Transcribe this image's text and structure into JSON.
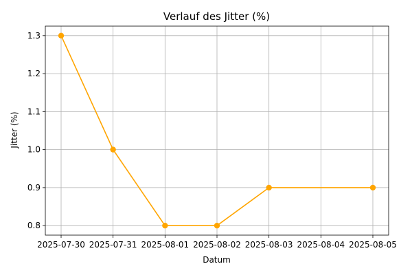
{
  "chart_data": {
    "type": "line",
    "title": "Verlauf des Jitter (%)",
    "xlabel": "Datum",
    "ylabel": "Jitter (%)",
    "x_ticks": [
      "2025-07-30",
      "2025-07-31",
      "2025-08-01",
      "2025-08-02",
      "2025-08-03",
      "2025-08-04",
      "2025-08-05"
    ],
    "y_ticks": [
      "0.8",
      "0.9",
      "1.0",
      "1.1",
      "1.2",
      "1.3"
    ],
    "ylim": [
      0.775,
      1.325
    ],
    "grid": true,
    "series": [
      {
        "color": "#ffa500",
        "marker": "circle",
        "points": [
          {
            "x": "2025-07-30",
            "y": 1.3
          },
          {
            "x": "2025-07-31",
            "y": 1.0
          },
          {
            "x": "2025-08-01",
            "y": 0.8
          },
          {
            "x": "2025-08-02",
            "y": 0.8
          },
          {
            "x": "2025-08-03",
            "y": 0.9
          },
          {
            "x": "2025-08-05",
            "y": 0.9
          }
        ]
      }
    ]
  }
}
